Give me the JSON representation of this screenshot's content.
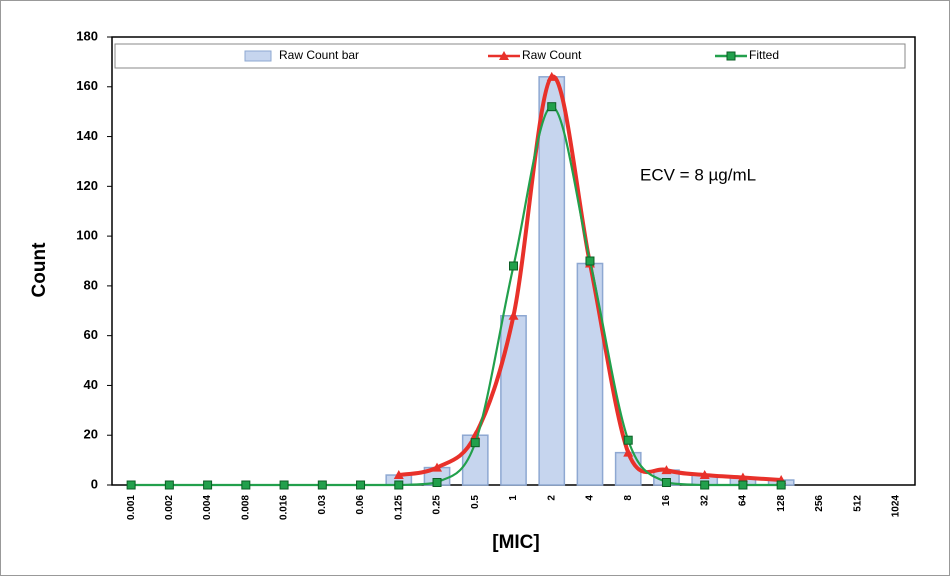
{
  "chart_data": {
    "type": "bar",
    "y_label": "Count",
    "x_label": "[MIC]",
    "annotation": "ECV = 8 µg/mL",
    "categories": [
      "0.001",
      "0.002",
      "0.004",
      "0.008",
      "0.016",
      "0.03",
      "0.06",
      "0.125",
      "0.25",
      "0.5",
      "1",
      "2",
      "4",
      "8",
      "16",
      "32",
      "64",
      "128",
      "256",
      "512",
      "1024"
    ],
    "series": [
      {
        "name": "Raw Count bar",
        "type": "bar",
        "color": "#c6d5ee",
        "values": [
          0,
          0,
          0,
          0,
          0,
          0,
          0,
          4,
          7,
          20,
          68,
          164,
          89,
          13,
          6,
          4,
          3,
          2,
          0,
          0,
          0
        ]
      },
      {
        "name": "Raw Count",
        "type": "line",
        "marker": "triangle",
        "color": "#e8312a",
        "values": [
          null,
          null,
          null,
          null,
          null,
          null,
          null,
          4,
          7,
          20,
          68,
          164,
          89,
          13,
          6,
          4,
          3,
          2,
          null,
          null,
          null
        ]
      },
      {
        "name": "Fitted",
        "type": "line",
        "marker": "square",
        "color": "#22a04c",
        "values": [
          0,
          0,
          0,
          0,
          0,
          0,
          0,
          0,
          1,
          17,
          88,
          152,
          90,
          18,
          1,
          0,
          0,
          0,
          null,
          null,
          null
        ]
      }
    ],
    "ylim": [
      0,
      180
    ],
    "yticks": [
      0,
      20,
      40,
      60,
      80,
      100,
      120,
      140,
      160,
      180
    ],
    "grid": false,
    "legend": "top"
  }
}
